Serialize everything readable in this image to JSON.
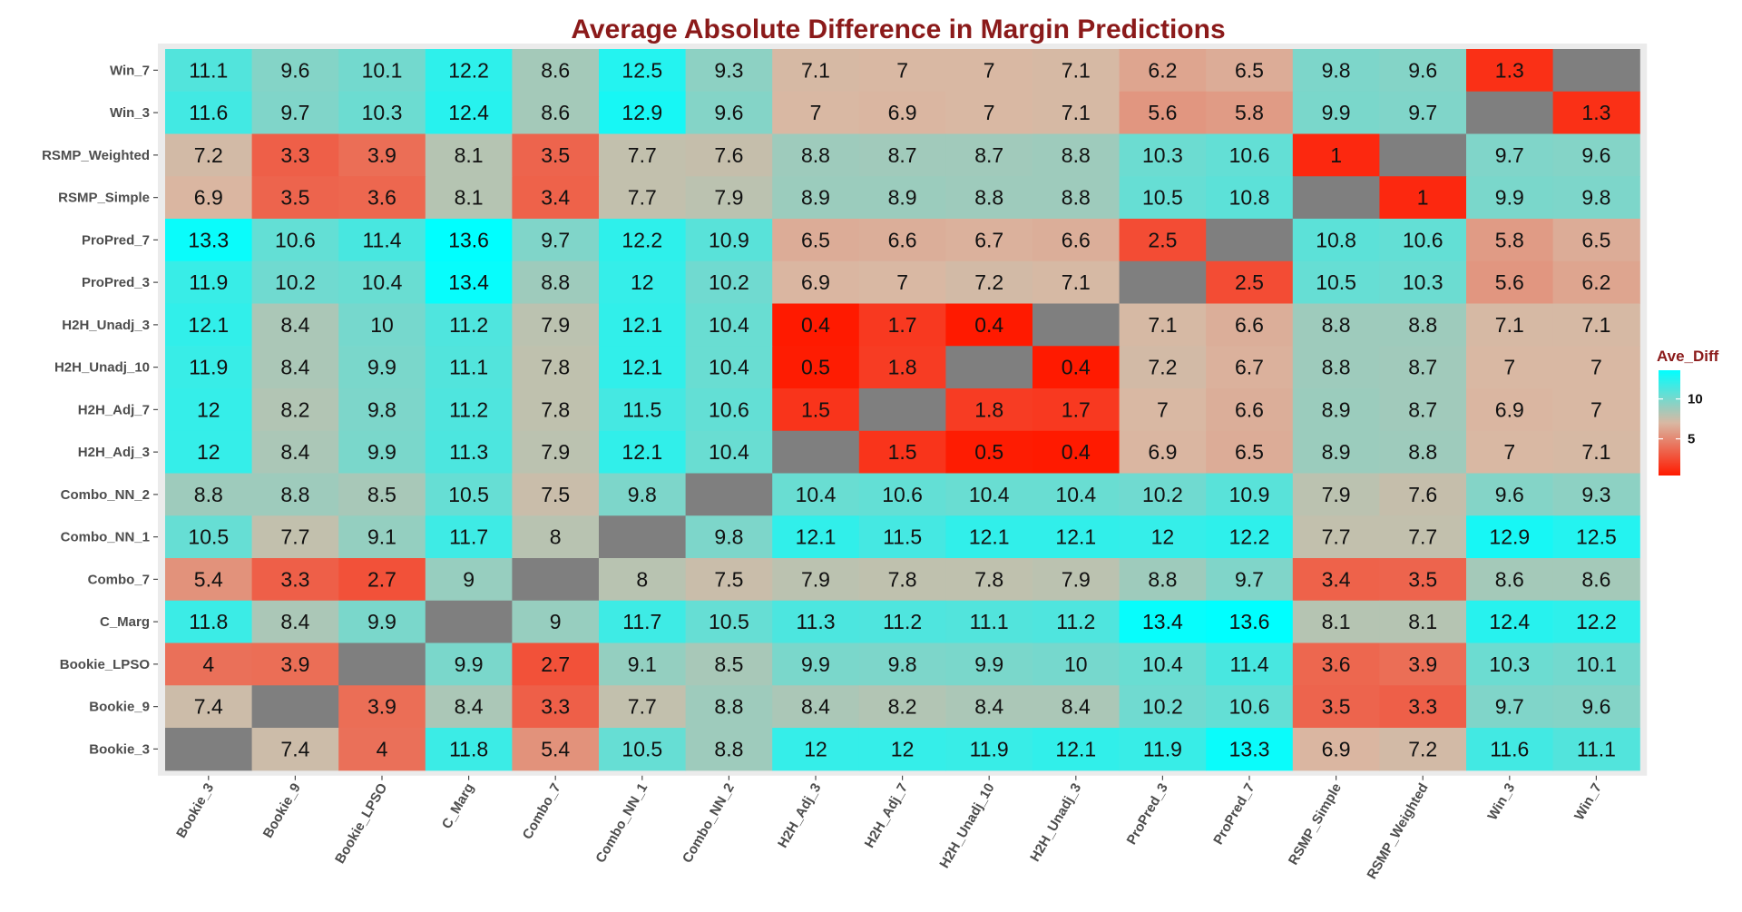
{
  "chart_data": {
    "type": "heatmap",
    "title": "Average Absolute Difference in Margin Predictions",
    "xlabel": "",
    "ylabel": "",
    "x_categories": [
      "Bookie_3",
      "Bookie_9",
      "Bookie_LPSO",
      "C_Marg",
      "Combo_7",
      "Combo_NN_1",
      "Combo_NN_2",
      "H2H_Adj_3",
      "H2H_Adj_7",
      "H2H_Unadj_10",
      "H2H_Unadj_3",
      "ProPred_3",
      "ProPred_7",
      "RSMP_Simple",
      "RSMP_Weighted",
      "Win_3",
      "Win_7"
    ],
    "y_categories_top_to_bottom": [
      "Win_7",
      "Win_3",
      "RSMP_Weighted",
      "RSMP_Simple",
      "ProPred_7",
      "ProPred_3",
      "H2H_Unadj_3",
      "H2H_Unadj_10",
      "H2H_Adj_7",
      "H2H_Adj_3",
      "Combo_NN_2",
      "Combo_NN_1",
      "Combo_7",
      "C_Marg",
      "Bookie_LPSO",
      "Bookie_9",
      "Bookie_3"
    ],
    "values": [
      [
        11.1,
        9.6,
        10.1,
        12.2,
        8.6,
        12.5,
        9.3,
        7.1,
        7,
        7,
        7.1,
        6.2,
        6.5,
        9.8,
        9.6,
        1.3,
        null
      ],
      [
        11.6,
        9.7,
        10.3,
        12.4,
        8.6,
        12.9,
        9.6,
        7,
        6.9,
        7,
        7.1,
        5.6,
        5.8,
        9.9,
        9.7,
        null,
        1.3
      ],
      [
        7.2,
        3.3,
        3.9,
        8.1,
        3.5,
        7.7,
        7.6,
        8.8,
        8.7,
        8.7,
        8.8,
        10.3,
        10.6,
        1,
        null,
        9.7,
        9.6
      ],
      [
        6.9,
        3.5,
        3.6,
        8.1,
        3.4,
        7.7,
        7.9,
        8.9,
        8.9,
        8.8,
        8.8,
        10.5,
        10.8,
        null,
        1,
        9.9,
        9.8
      ],
      [
        13.3,
        10.6,
        11.4,
        13.6,
        9.7,
        12.2,
        10.9,
        6.5,
        6.6,
        6.7,
        6.6,
        2.5,
        null,
        10.8,
        10.6,
        5.8,
        6.5
      ],
      [
        11.9,
        10.2,
        10.4,
        13.4,
        8.8,
        12,
        10.2,
        6.9,
        7,
        7.2,
        7.1,
        null,
        2.5,
        10.5,
        10.3,
        5.6,
        6.2
      ],
      [
        12.1,
        8.4,
        10,
        11.2,
        7.9,
        12.1,
        10.4,
        0.4,
        1.7,
        0.4,
        null,
        7.1,
        6.6,
        8.8,
        8.8,
        7.1,
        7.1
      ],
      [
        11.9,
        8.4,
        9.9,
        11.1,
        7.8,
        12.1,
        10.4,
        0.5,
        1.8,
        null,
        0.4,
        7.2,
        6.7,
        8.8,
        8.7,
        7,
        7
      ],
      [
        12,
        8.2,
        9.8,
        11.2,
        7.8,
        11.5,
        10.6,
        1.5,
        null,
        1.8,
        1.7,
        7,
        6.6,
        8.9,
        8.7,
        6.9,
        7
      ],
      [
        12,
        8.4,
        9.9,
        11.3,
        7.9,
        12.1,
        10.4,
        null,
        1.5,
        0.5,
        0.4,
        6.9,
        6.5,
        8.9,
        8.8,
        7,
        7.1
      ],
      [
        8.8,
        8.8,
        8.5,
        10.5,
        7.5,
        9.8,
        null,
        10.4,
        10.6,
        10.4,
        10.4,
        10.2,
        10.9,
        7.9,
        7.6,
        9.6,
        9.3
      ],
      [
        10.5,
        7.7,
        9.1,
        11.7,
        8,
        null,
        9.8,
        12.1,
        11.5,
        12.1,
        12.1,
        12,
        12.2,
        7.7,
        7.7,
        12.9,
        12.5
      ],
      [
        5.4,
        3.3,
        2.7,
        9,
        null,
        8,
        7.5,
        7.9,
        7.8,
        7.8,
        7.9,
        8.8,
        9.7,
        3.4,
        3.5,
        8.6,
        8.6
      ],
      [
        11.8,
        8.4,
        9.9,
        null,
        9,
        11.7,
        10.5,
        11.3,
        11.2,
        11.1,
        11.2,
        13.4,
        13.6,
        8.1,
        8.1,
        12.4,
        12.2
      ],
      [
        4,
        3.9,
        null,
        9.9,
        2.7,
        9.1,
        8.5,
        9.9,
        9.8,
        9.9,
        10,
        10.4,
        11.4,
        3.6,
        3.9,
        10.3,
        10.1
      ],
      [
        7.4,
        null,
        3.9,
        8.4,
        3.3,
        7.7,
        8.8,
        8.4,
        8.2,
        8.4,
        8.4,
        10.2,
        10.6,
        3.5,
        3.3,
        9.7,
        9.6
      ],
      [
        null,
        7.4,
        4,
        11.8,
        5.4,
        10.5,
        8.8,
        12,
        12,
        11.9,
        12.1,
        11.9,
        13.3,
        6.9,
        7.2,
        11.6,
        11.1
      ]
    ],
    "legend": {
      "title": "Ave_Diff",
      "ticks": [
        10,
        5
      ],
      "range": [
        0.4,
        13.6
      ],
      "low_color": "#ff1a00",
      "mid_color": "#d9b8a3",
      "high_color": "#00ffff"
    },
    "missing_color": "#7f7f7f",
    "panel_color": "#ebebeb",
    "grid": false,
    "legend_position": "right"
  }
}
